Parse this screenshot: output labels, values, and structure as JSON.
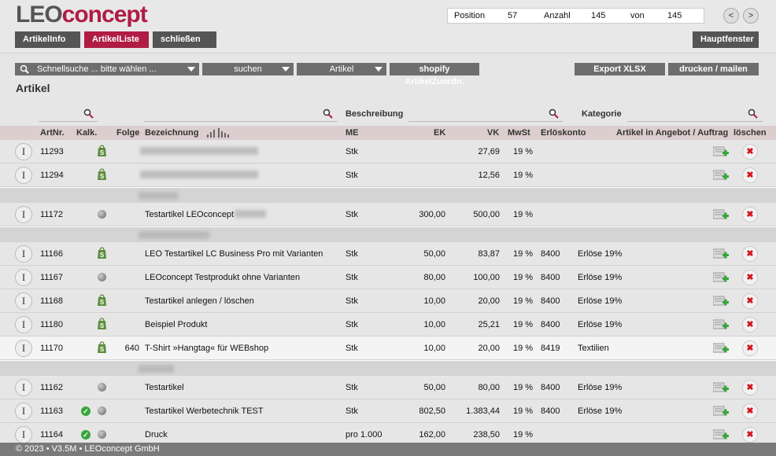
{
  "app": {
    "logo_part1": "LEO",
    "logo_part2": "concept"
  },
  "position": {
    "pos_label": "Position",
    "pos_value": "57",
    "count_label": "Anzahl",
    "count_value": "145",
    "of_label": "von",
    "of_value": "145"
  },
  "tabs": {
    "info": "ArtikelInfo",
    "list": "ArtikelListe",
    "close": "schließen",
    "main": "Hauptfenster"
  },
  "toolbar": {
    "search_placeholder": "Schnellsuche ... bitte wählen ...",
    "search_button": "suchen",
    "filter": "Artikel",
    "shopify": "shopify ArtikelZuordn.",
    "export": "Export XLSX",
    "print": "drucken / mailen"
  },
  "section_title": "Artikel",
  "filter_labels": {
    "desc": "Beschreibung",
    "category": "Kategorie"
  },
  "columns": {
    "artnr": "ArtNr.",
    "kalk": "Kalk.",
    "folge": "Folge",
    "bez": "Bezeichnung",
    "me": "ME",
    "ek": "EK",
    "vk": "VK",
    "mwst": "MwSt",
    "konto": "Erlöskonto",
    "angebot": "Artikel in Angebot / Auftrag",
    "loeschen": "löschen"
  },
  "rows": [
    {
      "type": "row",
      "artnr": "11293",
      "kalk": "shop",
      "folge": "",
      "bez": "",
      "blur": 150,
      "me": "Stk",
      "ek": "",
      "vk": "27,69",
      "mwst": "19 %",
      "konto": "",
      "kat": ""
    },
    {
      "type": "row",
      "artnr": "11294",
      "kalk": "shop",
      "folge": "",
      "bez": "",
      "blur": 150,
      "me": "Stk",
      "ek": "",
      "vk": "12,56",
      "mwst": "19 %",
      "konto": "",
      "kat": ""
    },
    {
      "type": "sep",
      "blur": 50
    },
    {
      "type": "row",
      "artnr": "11172",
      "kalk": "dot",
      "folge": "",
      "bez": "Testartikel LEOconcept",
      "blur": 40,
      "me": "Stk",
      "ek": "300,00",
      "vk": "500,00",
      "mwst": "19 %",
      "konto": "",
      "kat": ""
    },
    {
      "type": "sep",
      "blur": 90
    },
    {
      "type": "row",
      "artnr": "11166",
      "kalk": "shop",
      "folge": "",
      "bez": "LEO Testartikel LC Business Pro mit Varianten",
      "me": "Stk",
      "ek": "50,00",
      "vk": "83,87",
      "mwst": "19 %",
      "konto": "8400",
      "kat": "Erlöse 19%"
    },
    {
      "type": "row",
      "artnr": "11167",
      "kalk": "dot",
      "folge": "",
      "bez": "LEOconcept Testprodukt ohne Varianten",
      "me": "Stk",
      "ek": "80,00",
      "vk": "100,00",
      "mwst": "19 %",
      "konto": "8400",
      "kat": "Erlöse 19%"
    },
    {
      "type": "row",
      "artnr": "11168",
      "kalk": "shop",
      "folge": "",
      "bez": "Testartikel anlegen / löschen",
      "me": "Stk",
      "ek": "10,00",
      "vk": "20,00",
      "mwst": "19 %",
      "konto": "8400",
      "kat": "Erlöse 19%"
    },
    {
      "type": "row",
      "artnr": "11180",
      "kalk": "shop",
      "folge": "",
      "bez": "Beispiel Produkt",
      "me": "Stk",
      "ek": "10,00",
      "vk": "25,21",
      "mwst": "19 %",
      "konto": "8400",
      "kat": "Erlöse 19%"
    },
    {
      "type": "row",
      "hl": true,
      "artnr": "11170",
      "kalk": "shop",
      "folge": "640",
      "bez": "T-Shirt »Hangtag« für WEBshop",
      "me": "Stk",
      "ek": "10,00",
      "vk": "20,00",
      "mwst": "19 %",
      "konto": "8419",
      "kat": "Textilien"
    },
    {
      "type": "sep",
      "blur": 45
    },
    {
      "type": "row",
      "artnr": "11162",
      "kalk": "dot",
      "folge": "",
      "bez": "Testartikel",
      "me": "Stk",
      "ek": "50,00",
      "vk": "80,00",
      "mwst": "19 %",
      "konto": "8400",
      "kat": "Erlöse 19%"
    },
    {
      "type": "row",
      "artnr": "11163",
      "kalk": "checkdot",
      "folge": "",
      "bez": "Testartikel Werbetechnik TEST",
      "me": "Stk",
      "ek": "802,50",
      "vk": "1.383,44",
      "mwst": "19 %",
      "konto": "8400",
      "kat": "Erlöse 19%"
    },
    {
      "type": "row",
      "artnr": "11164",
      "kalk": "checkdot",
      "folge": "",
      "bez": "Druck",
      "me": "pro 1.000",
      "ek": "162,00",
      "vk": "238,50",
      "mwst": "19 %",
      "konto": "",
      "kat": ""
    }
  ],
  "row_icons": {
    "info": "I",
    "delete": "✖"
  },
  "footer": "© 2023 • V3.5M • LEOconcept GmbH"
}
